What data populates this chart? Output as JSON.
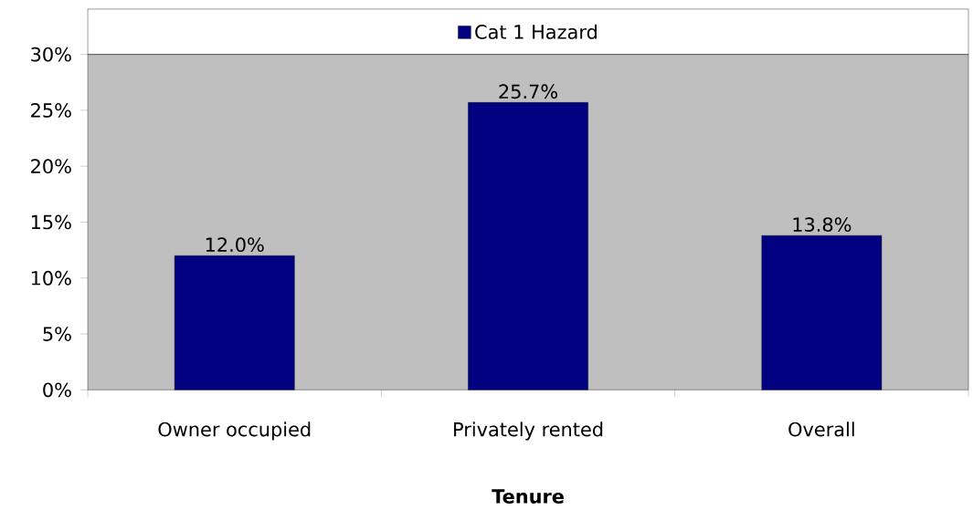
{
  "chart_data": {
    "type": "bar",
    "xlabel": "Tenure",
    "categories": [
      "Owner occupied",
      "Privately rented",
      "Overall"
    ],
    "series": [
      {
        "name": "Cat 1 Hazard",
        "color": "#000080",
        "values": [
          12.0,
          25.7,
          13.8
        ],
        "value_labels": [
          "12.0%",
          "25.7%",
          "13.8%"
        ]
      }
    ],
    "ylim": [
      0,
      30
    ],
    "yticks": [
      {
        "value": 0,
        "label": "0%"
      },
      {
        "value": 5,
        "label": "5%"
      },
      {
        "value": 10,
        "label": "10%"
      },
      {
        "value": 15,
        "label": "15%"
      },
      {
        "value": 20,
        "label": "20%"
      },
      {
        "value": 25,
        "label": "25%"
      },
      {
        "value": 30,
        "label": "30%"
      }
    ],
    "legend": "top",
    "grid": false
  }
}
